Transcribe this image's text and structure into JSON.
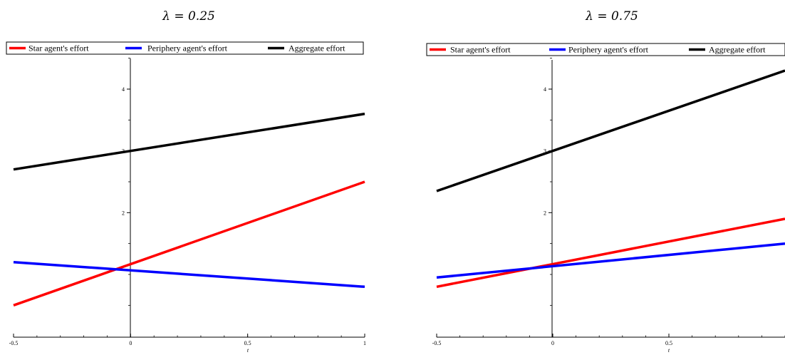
{
  "chart_data": [
    {
      "type": "line",
      "title": "λ = 0.25",
      "xlabel": "t",
      "ylabel": "",
      "xlim": [
        -0.5,
        1
      ],
      "ylim": [
        0.4,
        4.8
      ],
      "x_ticks": [
        "-0.5",
        "0",
        "0.5",
        "1"
      ],
      "y_ticks": [
        "2",
        "3",
        "4"
      ],
      "legend_position": "top",
      "series": [
        {
          "name": "Star agent's effort",
          "color": "#ff0000",
          "x": [
            -0.5,
            1
          ],
          "y": [
            0.5,
            2.5
          ]
        },
        {
          "name": "Periphery agent's effort",
          "color": "#0000ff",
          "x": [
            -0.5,
            1
          ],
          "y": [
            1.2,
            0.8
          ]
        },
        {
          "name": "Aggregate effort",
          "color": "#000000",
          "x": [
            -0.5,
            1
          ],
          "y": [
            2.7,
            3.6
          ]
        }
      ]
    },
    {
      "type": "line",
      "title": "λ = 0.75",
      "xlabel": "t",
      "ylabel": "",
      "xlim": [
        -0.5,
        1
      ],
      "ylim": [
        0.4,
        4.8
      ],
      "x_ticks": [
        "-0.5",
        "0",
        "0.5"
      ],
      "y_ticks": [
        "2",
        "3",
        "4"
      ],
      "legend_position": "top",
      "series": [
        {
          "name": "Star agent's effort",
          "color": "#ff0000",
          "x": [
            -0.5,
            1
          ],
          "y": [
            0.8,
            1.9
          ]
        },
        {
          "name": "Periphery agent's effort",
          "color": "#0000ff",
          "x": [
            -0.5,
            1
          ],
          "y": [
            0.95,
            1.5
          ]
        },
        {
          "name": "Aggregate effort",
          "color": "#000000",
          "x": [
            -0.5,
            1
          ],
          "y": [
            2.35,
            4.3
          ]
        }
      ]
    }
  ]
}
